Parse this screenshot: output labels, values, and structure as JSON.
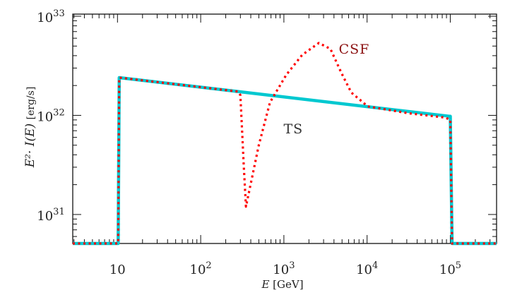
{
  "chart_data": {
    "type": "line",
    "xlabel": "E [GeV]",
    "xlabel_var": "E",
    "xlabel_unit": "[GeV]",
    "ylabel_var": "E²· I(E)",
    "ylabel_unit": "[erg/s]",
    "xscale": "log",
    "yscale": "log",
    "xlim": [
      2.9,
      360000
    ],
    "ylim": [
      5.1e+30,
      1e+33
    ],
    "grid": false,
    "x_ticks": [
      {
        "value": 10,
        "base": "10",
        "exp": ""
      },
      {
        "value": 100,
        "base": "10",
        "exp": "2"
      },
      {
        "value": 1000,
        "base": "10",
        "exp": "3"
      },
      {
        "value": 10000,
        "base": "10",
        "exp": "4"
      },
      {
        "value": 100000,
        "base": "10",
        "exp": "5"
      }
    ],
    "y_ticks": [
      {
        "value": 1e+31,
        "base": "10",
        "exp": "31"
      },
      {
        "value": 1e+32,
        "base": "10",
        "exp": "32"
      },
      {
        "value": 1e+33,
        "base": "10",
        "exp": "33"
      }
    ],
    "series": [
      {
        "name": "TS",
        "color": "#00c8d0",
        "style": "solid",
        "x": [
          2.9,
          10.2,
          10.5,
          97000,
          100000,
          105000,
          360000
        ],
        "y": [
          5.1e+30,
          5.1e+30,
          2.4e+32,
          9.8e+31,
          9.8e+31,
          5.1e+30,
          5.1e+30
        ]
      },
      {
        "name": "CSF",
        "color": "#ff0000",
        "style": "dotted",
        "x": [
          2.9,
          10.2,
          10.5,
          280,
          300,
          330,
          350,
          500,
          680,
          1070,
          1660,
          2630,
          3630,
          4900,
          6460,
          10200,
          31600,
          87000,
          100000,
          105000,
          360000
        ],
        "y": [
          5.1e+30,
          5.1e+30,
          2.4e+32,
          1.74e+32,
          1.6e+32,
          3e+31,
          1.2e+31,
          5e+31,
          1.35e+32,
          2.57e+32,
          4.07e+32,
          5.37e+32,
          4.68e+32,
          2.69e+32,
          1.7e+32,
          1.23e+32,
          1.05e+32,
          9.5e+31,
          9e+31,
          5.1e+30,
          5.1e+30
        ]
      }
    ],
    "labels": [
      {
        "text": "CSF",
        "color": "#8b1010",
        "x": 7000,
        "y": 4.2e+32
      },
      {
        "text": "TS",
        "color": "#333333",
        "x": 1300,
        "y": 6.6e+31
      }
    ]
  }
}
